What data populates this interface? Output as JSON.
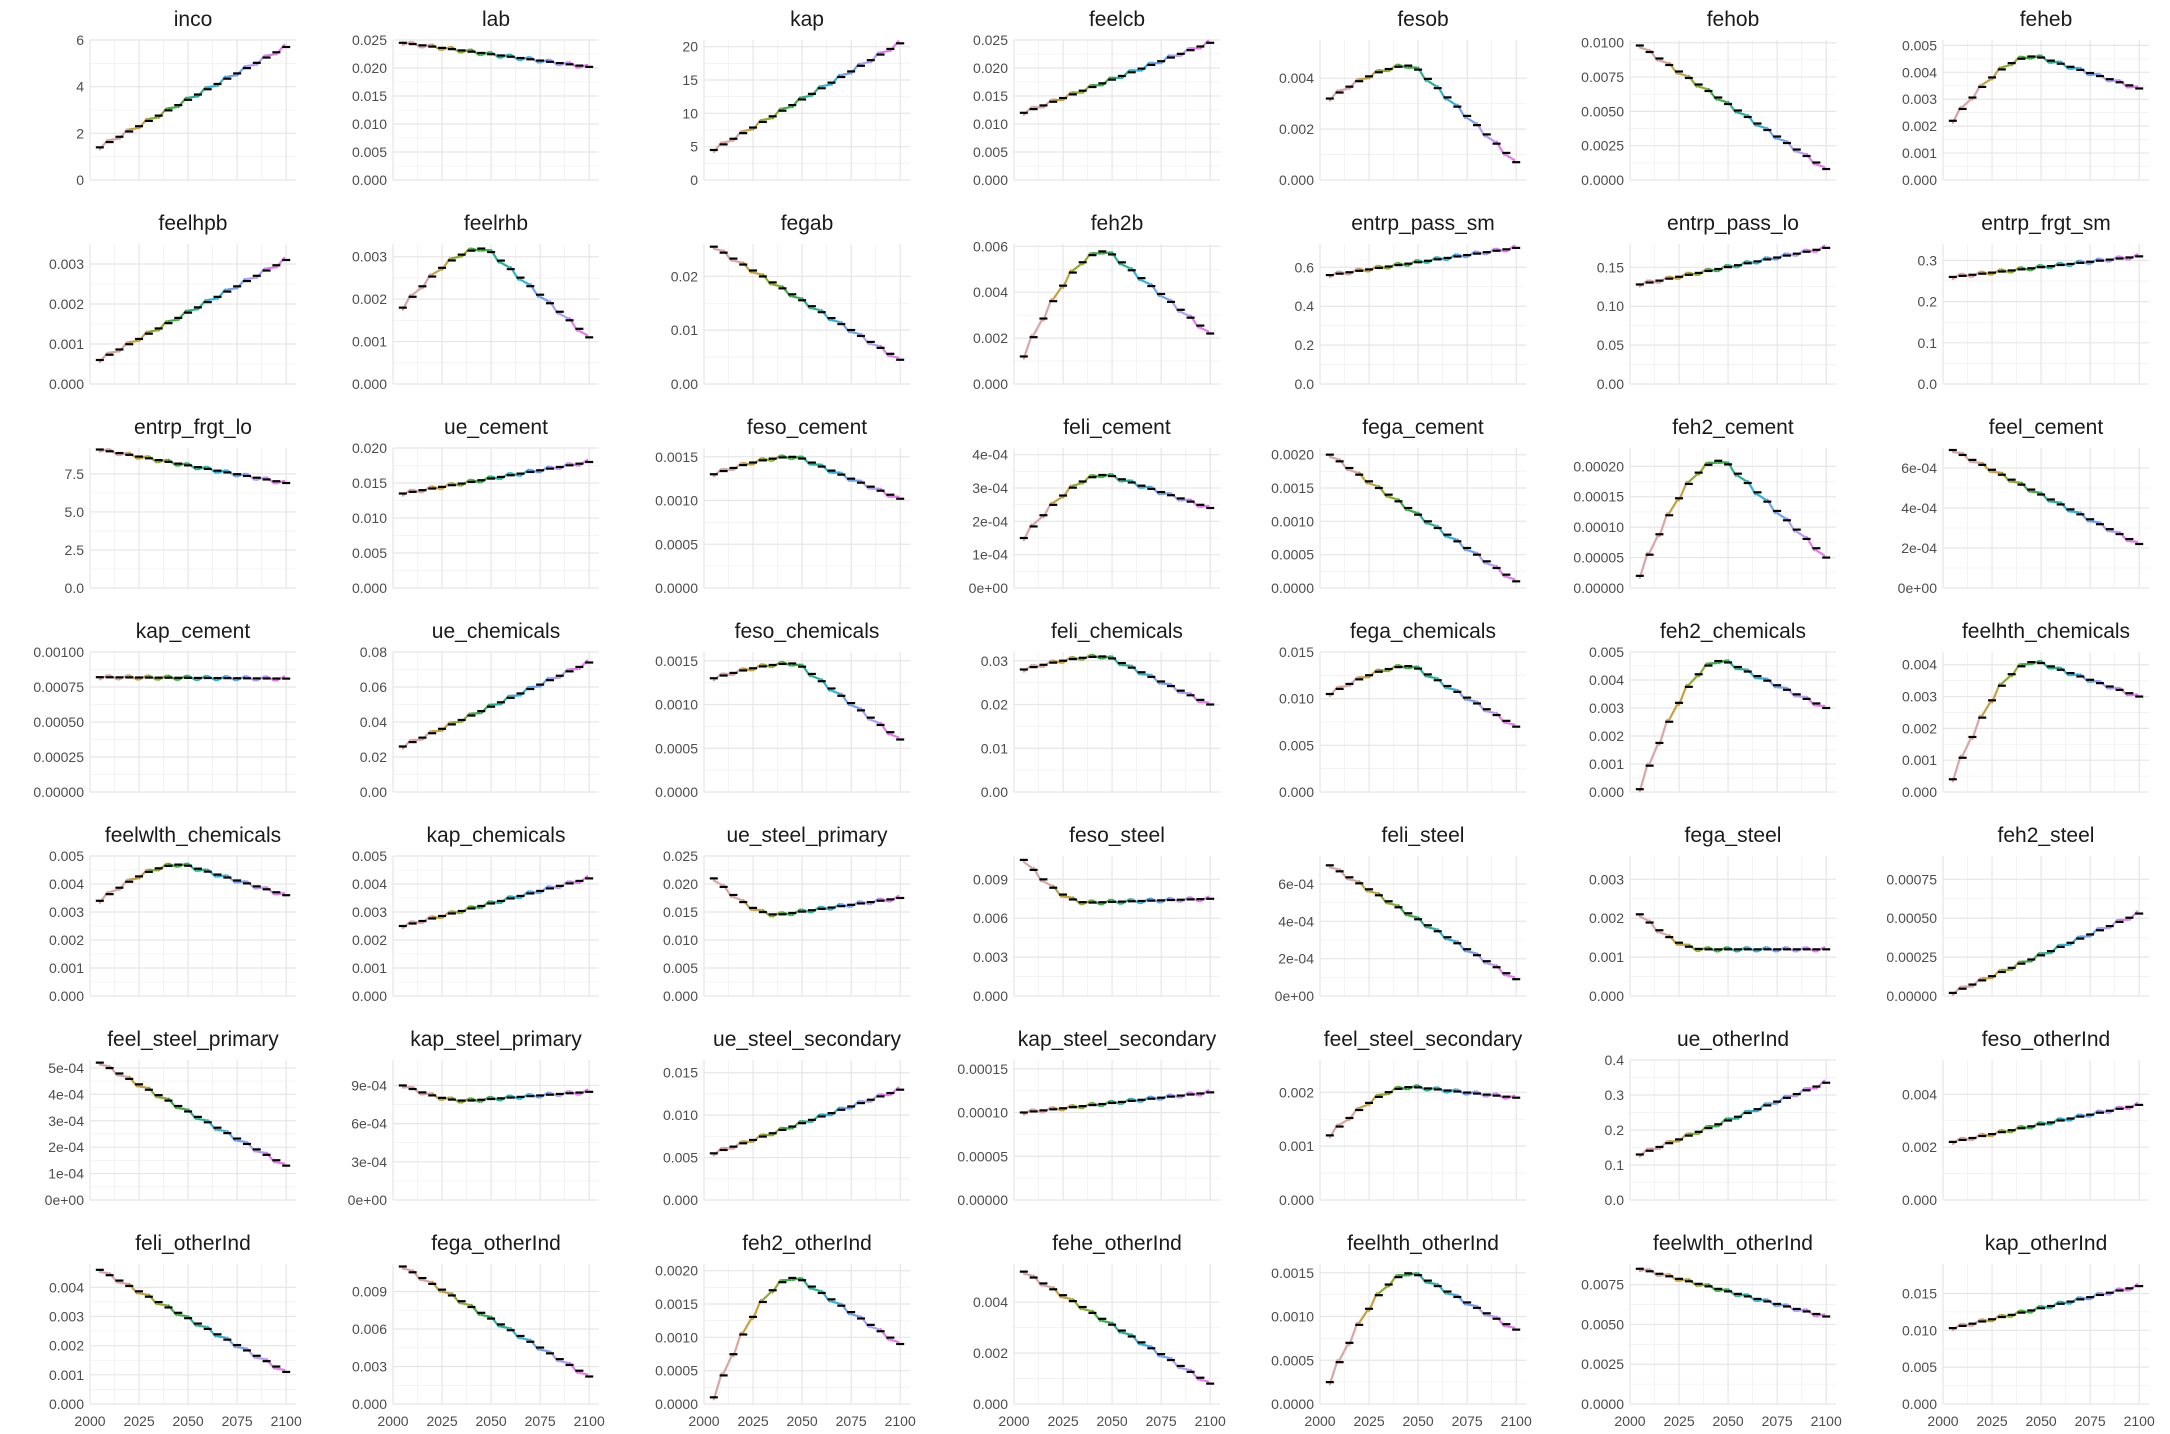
{
  "chart_data": [
    {
      "type": "line",
      "title": "inco",
      "yticks": [
        "0",
        "2",
        "4",
        "6"
      ],
      "ylim": [
        0,
        6
      ],
      "shape": "rise",
      "range": [
        1.4,
        5.7
      ]
    },
    {
      "type": "line",
      "title": "lab",
      "yticks": [
        "0.000",
        "0.005",
        "0.010",
        "0.015",
        "0.020",
        "0.025"
      ],
      "ylim": [
        0,
        0.025
      ],
      "shape": "decline",
      "range": [
        0.0245,
        0.0202
      ]
    },
    {
      "type": "line",
      "title": "kap",
      "yticks": [
        "0",
        "5",
        "10",
        "15",
        "20"
      ],
      "ylim": [
        0,
        21
      ],
      "shape": "rise",
      "range": [
        4.5,
        20.5
      ]
    },
    {
      "type": "line",
      "title": "feelcb",
      "yticks": [
        "0.000",
        "0.005",
        "0.010",
        "0.015",
        "0.020",
        "0.025"
      ],
      "ylim": [
        0,
        0.025
      ],
      "shape": "rise",
      "range": [
        0.012,
        0.0245
      ]
    },
    {
      "type": "line",
      "title": "fesob",
      "yticks": [
        "0.000",
        "0.002",
        "0.004"
      ],
      "ylim": [
        0,
        0.0055
      ],
      "shape": "hump",
      "range": [
        0.0032,
        0.0045,
        0.0007
      ]
    },
    {
      "type": "line",
      "title": "fehob",
      "yticks": [
        "0.0000",
        "0.0025",
        "0.0050",
        "0.0075",
        "0.0100"
      ],
      "ylim": [
        0,
        0.0102
      ],
      "shape": "decline",
      "range": [
        0.0098,
        0.0008
      ]
    },
    {
      "type": "line",
      "title": "feheb",
      "yticks": [
        "0.000",
        "0.001",
        "0.002",
        "0.003",
        "0.004",
        "0.005"
      ],
      "ylim": [
        0,
        0.0052
      ],
      "shape": "hump",
      "range": [
        0.0022,
        0.0046,
        0.0034
      ]
    },
    {
      "type": "line",
      "title": "feelhpb",
      "yticks": [
        "0.000",
        "0.001",
        "0.002",
        "0.003"
      ],
      "ylim": [
        0,
        0.0035
      ],
      "shape": "rise",
      "range": [
        0.0006,
        0.0031
      ]
    },
    {
      "type": "line",
      "title": "feelrhb",
      "yticks": [
        "0.000",
        "0.001",
        "0.002",
        "0.003"
      ],
      "ylim": [
        0,
        0.0033
      ],
      "shape": "hump",
      "range": [
        0.0018,
        0.0032,
        0.0011
      ]
    },
    {
      "type": "line",
      "title": "fegab",
      "yticks": [
        "0.00",
        "0.01",
        "0.02"
      ],
      "ylim": [
        0,
        0.026
      ],
      "shape": "decline",
      "range": [
        0.0255,
        0.0045
      ]
    },
    {
      "type": "line",
      "title": "feh2b",
      "yticks": [
        "0.000",
        "0.002",
        "0.004",
        "0.006"
      ],
      "ylim": [
        0,
        0.0061
      ],
      "shape": "hump",
      "range": [
        0.0012,
        0.0058,
        0.0022
      ]
    },
    {
      "type": "line",
      "title": "entrp_pass_sm",
      "yticks": [
        "0.0",
        "0.2",
        "0.4",
        "0.6"
      ],
      "ylim": [
        0,
        0.72
      ],
      "shape": "rise",
      "range": [
        0.56,
        0.7
      ]
    },
    {
      "type": "line",
      "title": "entrp_pass_lo",
      "yticks": [
        "0.00",
        "0.05",
        "0.10",
        "0.15"
      ],
      "ylim": [
        0,
        0.18
      ],
      "shape": "rise",
      "range": [
        0.128,
        0.175
      ]
    },
    {
      "type": "line",
      "title": "entrp_frgt_sm",
      "yticks": [
        "0.0",
        "0.1",
        "0.2",
        "0.3"
      ],
      "ylim": [
        0,
        0.34
      ],
      "shape": "rise",
      "range": [
        0.26,
        0.31
      ]
    },
    {
      "type": "line",
      "title": "entrp_frgt_lo",
      "yticks": [
        "0.0",
        "2.5",
        "5.0",
        "7.5"
      ],
      "ylim": [
        0,
        9.2
      ],
      "shape": "decline",
      "range": [
        9.1,
        6.9
      ]
    },
    {
      "type": "line",
      "title": "ue_cement",
      "yticks": [
        "0.000",
        "0.005",
        "0.010",
        "0.015",
        "0.020"
      ],
      "ylim": [
        0,
        0.02
      ],
      "shape": "rise",
      "range": [
        0.0135,
        0.018
      ]
    },
    {
      "type": "line",
      "title": "feso_cement",
      "yticks": [
        "0.0000",
        "0.0005",
        "0.0010",
        "0.0015"
      ],
      "ylim": [
        0,
        0.0016
      ],
      "shape": "hump",
      "range": [
        0.0013,
        0.0015,
        0.00102
      ]
    },
    {
      "type": "line",
      "title": "feli_cement",
      "yticks": [
        "0e+00",
        "1e-04",
        "2e-04",
        "3e-04",
        "4e-04"
      ],
      "ylim": [
        0,
        0.00042
      ],
      "shape": "hump",
      "range": [
        0.00015,
        0.00034,
        0.00024
      ]
    },
    {
      "type": "line",
      "title": "fega_cement",
      "yticks": [
        "0.0000",
        "0.0005",
        "0.0010",
        "0.0015",
        "0.0020"
      ],
      "ylim": [
        0,
        0.0021
      ],
      "shape": "decline",
      "range": [
        0.002,
        0.0001
      ]
    },
    {
      "type": "line",
      "title": "feh2_cement",
      "yticks": [
        "0.00000",
        "0.00005",
        "0.00010",
        "0.00015",
        "0.00020"
      ],
      "ylim": [
        0,
        0.00023
      ],
      "shape": "hump",
      "range": [
        2e-05,
        0.00021,
        5e-05
      ]
    },
    {
      "type": "line",
      "title": "feel_cement",
      "yticks": [
        "0e+00",
        "2e-04",
        "4e-04",
        "6e-04"
      ],
      "ylim": [
        0,
        0.0007
      ],
      "shape": "decline",
      "range": [
        0.00069,
        0.00022
      ]
    },
    {
      "type": "line",
      "title": "kap_cement",
      "yticks": [
        "0.00000",
        "0.00025",
        "0.00050",
        "0.00075",
        "0.00100"
      ],
      "ylim": [
        0,
        0.001
      ],
      "shape": "flat",
      "range": [
        0.00082,
        0.00081
      ]
    },
    {
      "type": "line",
      "title": "ue_chemicals",
      "yticks": [
        "0.00",
        "0.02",
        "0.04",
        "0.06",
        "0.08"
      ],
      "ylim": [
        0,
        0.08
      ],
      "shape": "rise",
      "range": [
        0.026,
        0.074
      ]
    },
    {
      "type": "line",
      "title": "feso_chemicals",
      "yticks": [
        "0.0000",
        "0.0005",
        "0.0010",
        "0.0015"
      ],
      "ylim": [
        0,
        0.0016
      ],
      "shape": "hump",
      "range": [
        0.0013,
        0.00147,
        0.0006
      ]
    },
    {
      "type": "line",
      "title": "feli_chemicals",
      "yticks": [
        "0.00",
        "0.01",
        "0.02",
        "0.03"
      ],
      "ylim": [
        0,
        0.032
      ],
      "shape": "hump",
      "range": [
        0.028,
        0.031,
        0.02
      ]
    },
    {
      "type": "line",
      "title": "fega_chemicals",
      "yticks": [
        "0.000",
        "0.005",
        "0.010",
        "0.015"
      ],
      "ylim": [
        0,
        0.015
      ],
      "shape": "hump",
      "range": [
        0.0105,
        0.0135,
        0.007
      ]
    },
    {
      "type": "line",
      "title": "feh2_chemicals",
      "yticks": [
        "0.000",
        "0.001",
        "0.002",
        "0.003",
        "0.004",
        "0.005"
      ],
      "ylim": [
        0,
        0.005
      ],
      "shape": "hump",
      "range": [
        0.0001,
        0.0047,
        0.003
      ]
    },
    {
      "type": "line",
      "title": "feelhth_chemicals",
      "yticks": [
        "0.000",
        "0.001",
        "0.002",
        "0.003",
        "0.004"
      ],
      "ylim": [
        0,
        0.0044
      ],
      "shape": "hump",
      "range": [
        0.0004,
        0.0041,
        0.003
      ]
    },
    {
      "type": "line",
      "title": "feelwlth_chemicals",
      "yticks": [
        "0.000",
        "0.001",
        "0.002",
        "0.003",
        "0.004",
        "0.005"
      ],
      "ylim": [
        0,
        0.005
      ],
      "shape": "hump",
      "range": [
        0.0034,
        0.0047,
        0.0036
      ]
    },
    {
      "type": "line",
      "title": "kap_chemicals",
      "yticks": [
        "0.000",
        "0.001",
        "0.002",
        "0.003",
        "0.004",
        "0.005"
      ],
      "ylim": [
        0,
        0.005
      ],
      "shape": "rise",
      "range": [
        0.0025,
        0.0042
      ]
    },
    {
      "type": "line",
      "title": "ue_steel_primary",
      "yticks": [
        "0.000",
        "0.005",
        "0.010",
        "0.015",
        "0.020",
        "0.025"
      ],
      "ylim": [
        0,
        0.025
      ],
      "shape": "valley",
      "range": [
        0.021,
        0.0145,
        0.0175
      ]
    },
    {
      "type": "line",
      "title": "feso_steel",
      "yticks": [
        "0.000",
        "0.003",
        "0.006",
        "0.009"
      ],
      "ylim": [
        0,
        0.0108
      ],
      "shape": "valley",
      "range": [
        0.0105,
        0.0072,
        0.0075
      ]
    },
    {
      "type": "line",
      "title": "feli_steel",
      "yticks": [
        "0e+00",
        "2e-04",
        "4e-04",
        "6e-04"
      ],
      "ylim": [
        0,
        0.00075
      ],
      "shape": "decline",
      "range": [
        0.0007,
        9e-05
      ]
    },
    {
      "type": "line",
      "title": "fega_steel",
      "yticks": [
        "0.000",
        "0.001",
        "0.002",
        "0.003"
      ],
      "ylim": [
        0,
        0.0036
      ],
      "shape": "valley",
      "range": [
        0.0021,
        0.0012,
        0.0012
      ]
    },
    {
      "type": "line",
      "title": "feh2_steel",
      "yticks": [
        "0.00000",
        "0.00025",
        "0.00050",
        "0.00075"
      ],
      "ylim": [
        0,
        0.0009
      ],
      "shape": "rise",
      "range": [
        2e-05,
        0.00053
      ]
    },
    {
      "type": "line",
      "title": "feel_steel_primary",
      "yticks": [
        "0e+00",
        "1e-04",
        "2e-04",
        "3e-04",
        "4e-04",
        "5e-04"
      ],
      "ylim": [
        0,
        0.00053
      ],
      "shape": "decline",
      "range": [
        0.00052,
        0.00013
      ]
    },
    {
      "type": "line",
      "title": "kap_steel_primary",
      "yticks": [
        "0e+00",
        "3e-04",
        "6e-04",
        "9e-04"
      ],
      "ylim": [
        0,
        0.0011
      ],
      "shape": "valley",
      "range": [
        0.0009,
        0.00078,
        0.00085
      ]
    },
    {
      "type": "line",
      "title": "ue_steel_secondary",
      "yticks": [
        "0.000",
        "0.005",
        "0.010",
        "0.015"
      ],
      "ylim": [
        0,
        0.0165
      ],
      "shape": "rise",
      "range": [
        0.0055,
        0.013
      ]
    },
    {
      "type": "line",
      "title": "kap_steel_secondary",
      "yticks": [
        "0.00000",
        "0.00005",
        "0.00010",
        "0.00015"
      ],
      "ylim": [
        0,
        0.00016
      ],
      "shape": "rise",
      "range": [
        0.0001,
        0.000123
      ]
    },
    {
      "type": "line",
      "title": "feel_steel_secondary",
      "yticks": [
        "0.000",
        "0.001",
        "0.002"
      ],
      "ylim": [
        0,
        0.0026
      ],
      "shape": "hump",
      "range": [
        0.0012,
        0.0021,
        0.0019
      ]
    },
    {
      "type": "line",
      "title": "ue_otherInd",
      "yticks": [
        "0.0",
        "0.1",
        "0.2",
        "0.3",
        "0.4"
      ],
      "ylim": [
        0,
        0.4
      ],
      "shape": "rise",
      "range": [
        0.13,
        0.335
      ]
    },
    {
      "type": "line",
      "title": "feso_otherInd",
      "yticks": [
        "0.000",
        "0.002",
        "0.004"
      ],
      "ylim": [
        0,
        0.0053
      ],
      "shape": "rise",
      "range": [
        0.0022,
        0.0036
      ]
    },
    {
      "type": "line",
      "title": "feli_otherInd",
      "yticks": [
        "0.000",
        "0.001",
        "0.002",
        "0.003",
        "0.004"
      ],
      "ylim": [
        0,
        0.0048
      ],
      "shape": "decline",
      "range": [
        0.0046,
        0.0011
      ]
    },
    {
      "type": "line",
      "title": "fega_otherInd",
      "yticks": [
        "0.000",
        "0.003",
        "0.006",
        "0.009"
      ],
      "ylim": [
        0,
        0.0112
      ],
      "shape": "decline",
      "range": [
        0.011,
        0.0022
      ]
    },
    {
      "type": "line",
      "title": "feh2_otherInd",
      "yticks": [
        "0.0000",
        "0.0005",
        "0.0010",
        "0.0015",
        "0.0020"
      ],
      "ylim": [
        0,
        0.0021
      ],
      "shape": "hump",
      "range": [
        0.0001,
        0.0019,
        0.0009
      ]
    },
    {
      "type": "line",
      "title": "fehe_otherInd",
      "yticks": [
        "0.000",
        "0.002",
        "0.004"
      ],
      "ylim": [
        0,
        0.0055
      ],
      "shape": "decline",
      "range": [
        0.0052,
        0.0008
      ]
    },
    {
      "type": "line",
      "title": "feelhth_otherInd",
      "yticks": [
        "0.0000",
        "0.0005",
        "0.0010",
        "0.0015"
      ],
      "ylim": [
        0,
        0.0016
      ],
      "shape": "hump",
      "range": [
        0.00025,
        0.0015,
        0.00085
      ]
    },
    {
      "type": "line",
      "title": "feelwlth_otherInd",
      "yticks": [
        "0.0000",
        "0.0025",
        "0.0050",
        "0.0075"
      ],
      "ylim": [
        0,
        0.0088
      ],
      "shape": "decline",
      "range": [
        0.0085,
        0.0055
      ]
    },
    {
      "type": "line",
      "title": "kap_otherInd",
      "yticks": [
        "0.000",
        "0.005",
        "0.010",
        "0.015"
      ],
      "ylim": [
        0,
        0.019
      ],
      "shape": "rise",
      "range": [
        0.0103,
        0.016
      ]
    }
  ],
  "xaxis": {
    "ticks": [
      "2000",
      "2025",
      "2050",
      "2075",
      "2100"
    ],
    "xlim": [
      2000,
      2105
    ]
  },
  "colors": {
    "estimate": "#000000",
    "series_gradient": [
      "#D9A6A6",
      "#C6A23E",
      "#8BAD2E",
      "#3DAE47",
      "#27B393",
      "#2EB4D7",
      "#6FA3F2",
      "#B29EF5",
      "#E57BEF"
    ],
    "grid": "#e6e6e6"
  }
}
